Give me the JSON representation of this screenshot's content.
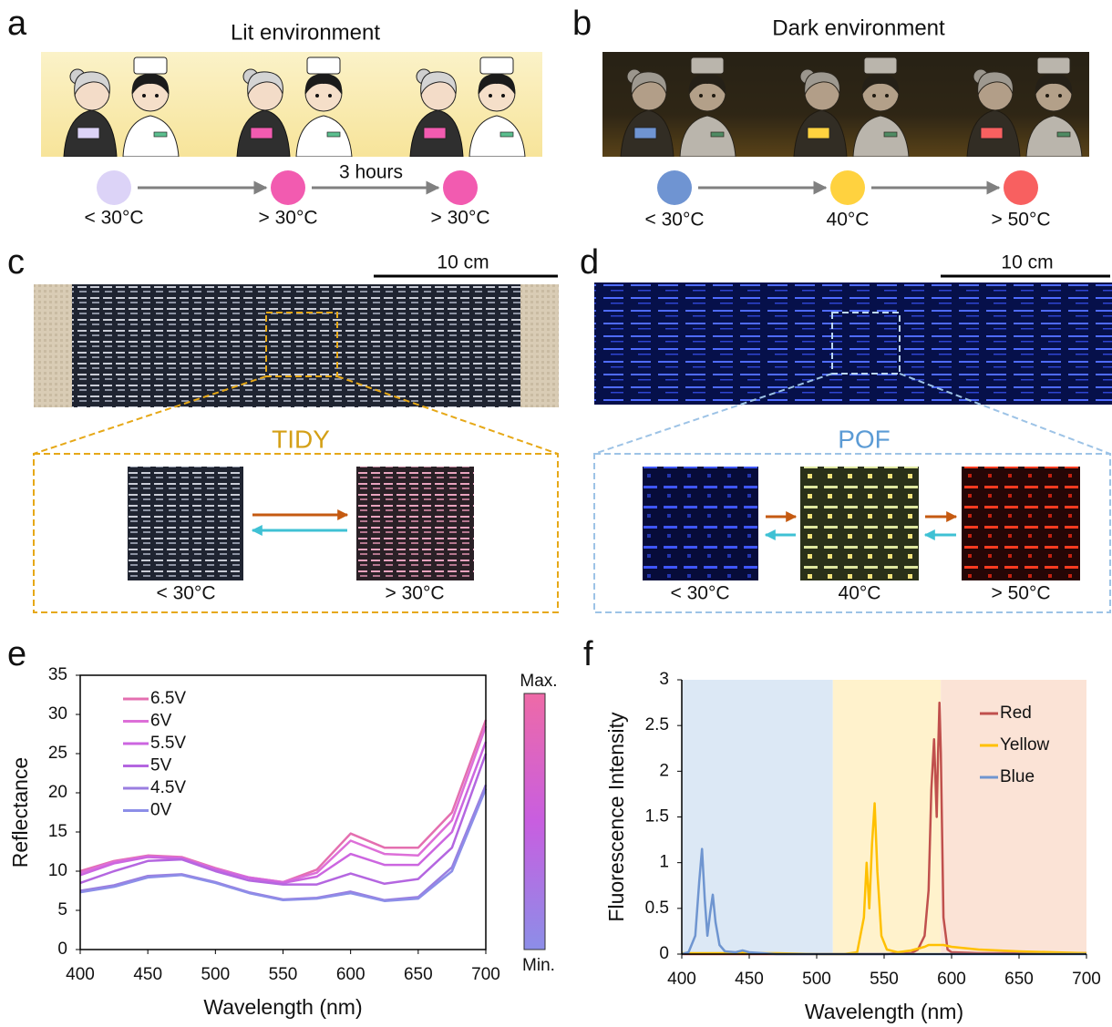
{
  "panels": {
    "a": {
      "label": "a",
      "title": "Lit environment",
      "arrow_label": "3 hours",
      "states": [
        {
          "label": "< 30°C",
          "color": "#dcd3f7"
        },
        {
          "label": "> 30°C",
          "color": "#f25bb0"
        },
        {
          "label": "> 30°C",
          "color": "#f25bb0"
        }
      ]
    },
    "b": {
      "label": "b",
      "title": "Dark environment",
      "states": [
        {
          "label": "< 30°C",
          "color": "#6f94d2"
        },
        {
          "label": "40°C",
          "color": "#ffd23f"
        },
        {
          "label": "> 50°C",
          "color": "#f86060"
        }
      ]
    },
    "c": {
      "label": "c",
      "scale_bar": "10 cm",
      "inset_title": "TIDY",
      "states": [
        "< 30°C",
        "> 30°C"
      ]
    },
    "d": {
      "label": "d",
      "scale_bar": "10 cm",
      "inset_title": "POF",
      "states": [
        "< 30°C",
        "40°C",
        "> 50°C"
      ]
    }
  },
  "chart_data": [
    {
      "type": "line",
      "panel_label": "e",
      "xlabel": "Wavelength (nm)",
      "ylabel": "Reflectance",
      "frame": true,
      "xlim": [
        400,
        700
      ],
      "xticks": [
        400,
        450,
        500,
        550,
        600,
        650,
        700
      ],
      "ylim": [
        0,
        35
      ],
      "yticks": [
        0,
        5,
        10,
        15,
        20,
        25,
        30,
        35
      ],
      "x": [
        400,
        425,
        450,
        475,
        500,
        525,
        550,
        575,
        600,
        625,
        650,
        675,
        700
      ],
      "series": [
        {
          "name": "6.5V",
          "color": "#e46fb0",
          "values": [
            10,
            11.3,
            12,
            11.8,
            10.4,
            9.2,
            8.6,
            10.2,
            14.8,
            13,
            13,
            17.5,
            29.3
          ]
        },
        {
          "name": "6V",
          "color": "#dd6fd8",
          "values": [
            9.8,
            11.2,
            11.9,
            11.7,
            10.3,
            9.2,
            8.6,
            9.8,
            13.9,
            12.2,
            12,
            16.5,
            28.5
          ]
        },
        {
          "name": "5.5V",
          "color": "#cc66e0",
          "values": [
            9.5,
            11,
            11.8,
            11.6,
            10.2,
            9.1,
            8.5,
            9.3,
            12.2,
            10.8,
            10.8,
            15,
            26.5
          ]
        },
        {
          "name": "5V",
          "color": "#b466e0",
          "values": [
            8.5,
            10,
            11.3,
            11.5,
            10,
            8.8,
            8.3,
            8.3,
            9.7,
            8.4,
            9,
            13,
            25
          ]
        },
        {
          "name": "4.5V",
          "color": "#9a7ee0",
          "values": [
            7.5,
            8.2,
            9.4,
            9.6,
            8.6,
            7.3,
            6.4,
            6.6,
            7.4,
            6.3,
            6.7,
            10.5,
            21
          ]
        },
        {
          "name": "0V",
          "color": "#8c8ee8",
          "values": [
            7.3,
            8,
            9.2,
            9.5,
            8.5,
            7.2,
            6.3,
            6.5,
            7.2,
            6.2,
            6.5,
            10,
            20.5
          ]
        }
      ],
      "colorbar": {
        "max_label": "Max.",
        "min_label": "Min.",
        "colors": [
          "#ee6aa7",
          "#c85ee0",
          "#8c8ee8"
        ]
      }
    },
    {
      "type": "line",
      "panel_label": "f",
      "xlabel": "Wavelength (nm)",
      "ylabel": "Fluorescence Intensity",
      "frame": false,
      "xlim": [
        400,
        700
      ],
      "xticks": [
        400,
        450,
        500,
        550,
        600,
        650,
        700
      ],
      "ylim": [
        0,
        3
      ],
      "yticks": [
        0,
        0.5,
        1,
        1.5,
        2,
        2.5,
        3
      ],
      "regions": [
        {
          "from": 400,
          "to": 512,
          "color": "#dce8f5"
        },
        {
          "from": 512,
          "to": 592,
          "color": "#fff2cc"
        },
        {
          "from": 592,
          "to": 700,
          "color": "#fbe3d6"
        }
      ],
      "x": [
        400,
        405,
        410,
        413,
        415,
        417,
        419,
        421,
        423,
        425,
        428,
        432,
        440,
        445,
        450,
        470,
        500,
        520,
        530,
        535,
        537,
        539,
        541,
        543,
        545,
        548,
        552,
        560,
        570,
        575,
        580,
        583,
        585,
        587,
        589,
        590,
        591,
        592,
        594,
        597,
        600,
        620,
        650,
        700
      ],
      "series": [
        {
          "name": "Red",
          "color": "#c0504d",
          "values": [
            0,
            0,
            0,
            0,
            0,
            0,
            0,
            0,
            0,
            0,
            0,
            0,
            0,
            0,
            0,
            0,
            0,
            0,
            0,
            0,
            0,
            0,
            0,
            0,
            0,
            0,
            0,
            0.01,
            0.01,
            0.05,
            0.2,
            0.7,
            1.8,
            2.35,
            1.5,
            2.2,
            2.75,
            2.2,
            0.4,
            0.05,
            0.02,
            0.01,
            0.01,
            0.01
          ]
        },
        {
          "name": "Yellow",
          "color": "#ffc000",
          "values": [
            0.01,
            0.01,
            0.01,
            0.01,
            0.01,
            0.01,
            0.01,
            0.01,
            0.01,
            0.01,
            0.01,
            0.01,
            0.01,
            0.02,
            0.01,
            0.01,
            0,
            0,
            0.02,
            0.4,
            1,
            0.5,
            1.2,
            1.65,
            0.9,
            0.2,
            0.05,
            0.02,
            0.04,
            0.06,
            0.08,
            0.1,
            0.1,
            0.1,
            0.1,
            0.1,
            0.1,
            0.1,
            0.1,
            0.09,
            0.08,
            0.05,
            0.03,
            0.01
          ]
        },
        {
          "name": "Blue",
          "color": "#6f95d0",
          "values": [
            0,
            0.02,
            0.2,
            0.8,
            1.15,
            0.6,
            0.2,
            0.45,
            0.65,
            0.35,
            0.1,
            0.03,
            0.02,
            0.04,
            0.02,
            0,
            0,
            0,
            0,
            0,
            0,
            0,
            0,
            0,
            0,
            0,
            0,
            0,
            0,
            0,
            0,
            0,
            0,
            0,
            0,
            0,
            0,
            0,
            0,
            0,
            0,
            0,
            0,
            0
          ]
        }
      ]
    }
  ]
}
